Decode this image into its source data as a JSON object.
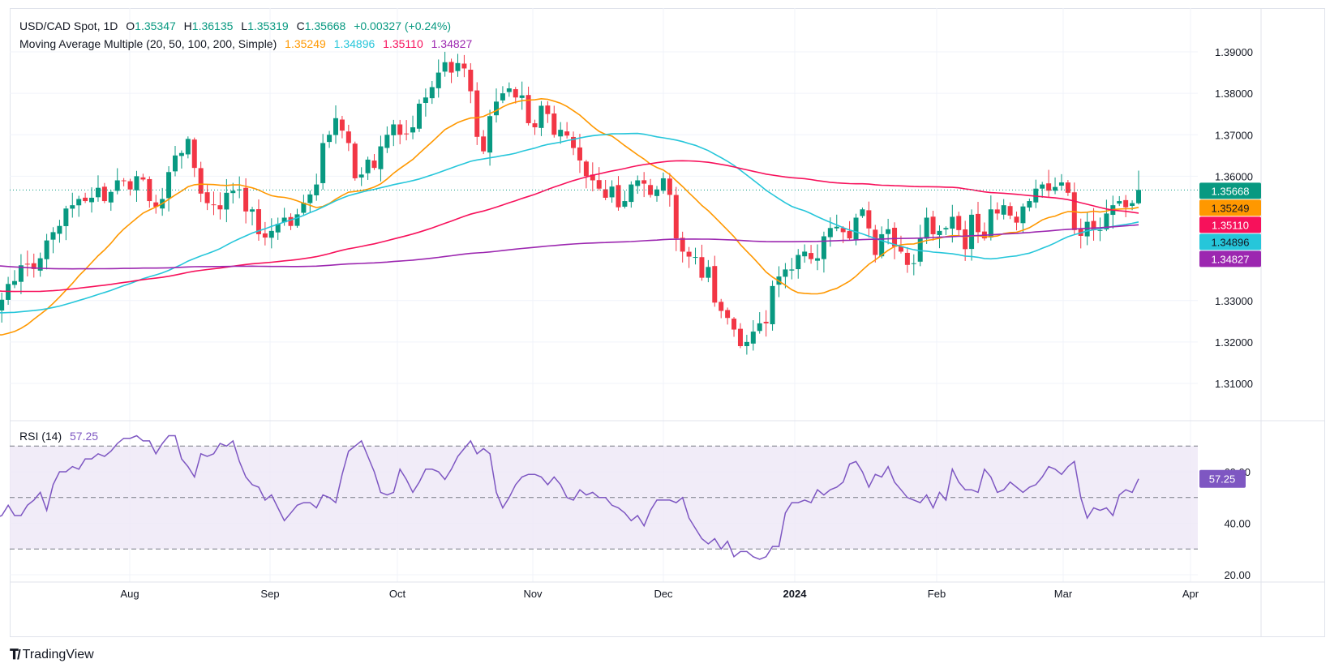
{
  "header": {
    "symbol": "USD/CAD Spot, 1D",
    "open_label": "O",
    "open": "1.35347",
    "high_label": "H",
    "high": "1.36135",
    "low_label": "L",
    "low": "1.35319",
    "close_label": "C",
    "close": "1.35668",
    "change": "+0.00327 (+0.24%)"
  },
  "ma_legend": {
    "label": "Moving Average Multiple (20, 50, 100, 200, Simple)",
    "values": [
      "1.35249",
      "1.34896",
      "1.35110",
      "1.34827"
    ]
  },
  "rsi_legend": {
    "label": "RSI (14)",
    "value": "57.25"
  },
  "footer": {
    "brand": "TradingView",
    "logo_icon": "tradingview-logo-icon"
  },
  "colors": {
    "up": "#089981",
    "down": "#f23645",
    "ma20": "#ff9800",
    "ma50": "#26c6da",
    "ma100": "#f7115b",
    "ma200": "#9c27b0",
    "rsi_line": "#7e57c2",
    "rsi_band": "#ede7f6"
  },
  "chart_data": [
    {
      "type": "candlestick",
      "title": "USD/CAD Spot, 1D",
      "price_axis_ticks": [
        "1.39000",
        "1.38000",
        "1.37000",
        "1.36000",
        "1.33000",
        "1.32000",
        "1.31000"
      ],
      "price_axis_range": [
        1.3005,
        1.396
      ],
      "time_axis_ticks": [
        "Aug",
        "Sep",
        "Oct",
        "Nov",
        "Dec",
        "2024",
        "Feb",
        "Mar",
        "Apr"
      ],
      "price_labels": [
        {
          "name": "last",
          "value": "1.35668",
          "color": "#089981"
        },
        {
          "name": "ma20",
          "value": "1.35249",
          "color": "#ff9800"
        },
        {
          "name": "ma100",
          "value": "1.35110",
          "color": "#f7115b"
        },
        {
          "name": "ma50",
          "value": "1.34896",
          "color": "#26c6da"
        },
        {
          "name": "ma200",
          "value": "1.34827",
          "color": "#9c27b0"
        }
      ],
      "last_price": 1.35668,
      "closes": [
        1.3275,
        1.3308,
        1.3258,
        1.3262,
        1.3235,
        1.3195,
        1.3128,
        1.3165,
        1.3202,
        1.3178,
        1.3172,
        1.319,
        1.3205,
        1.3178,
        1.3232,
        1.3218,
        1.324,
        1.326,
        1.324,
        1.3215,
        1.3276,
        1.3302,
        1.334,
        1.3347,
        1.3385,
        1.3388,
        1.3376,
        1.3402,
        1.3445,
        1.3465,
        1.348,
        1.3522,
        1.353,
        1.3545,
        1.354,
        1.3548,
        1.3572,
        1.354,
        1.3562,
        1.359,
        1.3588,
        1.3568,
        1.36,
        1.3592,
        1.354,
        1.3526,
        1.3545,
        1.361,
        1.365,
        1.3656,
        1.369,
        1.362,
        1.3558,
        1.3535,
        1.353,
        1.352,
        1.356,
        1.3565,
        1.3568,
        1.3515,
        1.352,
        1.346,
        1.3452,
        1.3468,
        1.3485,
        1.35,
        1.348,
        1.3508,
        1.3536,
        1.3556,
        1.358,
        1.368,
        1.37,
        1.374,
        1.371,
        1.368,
        1.3595,
        1.3604,
        1.364,
        1.362,
        1.3672,
        1.37,
        1.3725,
        1.37,
        1.3702,
        1.3718,
        1.3775,
        1.379,
        1.3815,
        1.385,
        1.3875,
        1.385,
        1.3873,
        1.386,
        1.3805,
        1.3695,
        1.366,
        1.3745,
        1.378,
        1.38,
        1.3812,
        1.379,
        1.3795,
        1.3728,
        1.3718,
        1.377,
        1.375,
        1.37,
        1.3712,
        1.3698,
        1.3668,
        1.3638,
        1.36,
        1.359,
        1.357,
        1.3548,
        1.3575,
        1.3525,
        1.354,
        1.358,
        1.359,
        1.3582,
        1.3555,
        1.3568,
        1.3595,
        1.3555,
        1.345,
        1.3418,
        1.3406,
        1.3405,
        1.3355,
        1.3381,
        1.3295,
        1.3275,
        1.3258,
        1.323,
        1.319,
        1.32,
        1.3225,
        1.3245,
        1.3245,
        1.3335,
        1.3358,
        1.3375,
        1.3375,
        1.341,
        1.3418,
        1.34,
        1.3402,
        1.3455,
        1.3475,
        1.3478,
        1.3465,
        1.345,
        1.35,
        1.352,
        1.3474,
        1.341,
        1.346,
        1.3472,
        1.343,
        1.3418,
        1.3386,
        1.339,
        1.3452,
        1.35,
        1.346,
        1.3468,
        1.3475,
        1.3502,
        1.347,
        1.3424,
        1.3507,
        1.3465,
        1.345,
        1.352,
        1.351,
        1.353,
        1.3505,
        1.3488,
        1.3527,
        1.354,
        1.357,
        1.358,
        1.3565,
        1.3574,
        1.3585,
        1.356,
        1.347,
        1.3456,
        1.349,
        1.347,
        1.347,
        1.351,
        1.353,
        1.354,
        1.3525,
        1.3535,
        1.3567
      ],
      "moving_averages": [
        {
          "name": "MA 20",
          "period": 20,
          "color": "#ff9800",
          "last": 1.35249
        },
        {
          "name": "MA 50",
          "period": 50,
          "color": "#26c6da",
          "last": 1.34896
        },
        {
          "name": "MA 100",
          "period": 100,
          "color": "#f7115b",
          "last": 1.3511
        },
        {
          "name": "MA 200",
          "period": 200,
          "color": "#9c27b0",
          "last": 1.34827
        }
      ]
    },
    {
      "type": "line",
      "title": "RSI (14)",
      "last_value": 57.25,
      "y_ticks": [
        "60.00",
        "40.00",
        "20.00"
      ],
      "ylim": [
        17.5,
        82
      ],
      "bands": {
        "upper": 70,
        "middle": 50,
        "lower": 30
      },
      "values": [
        44,
        57,
        47,
        48,
        43,
        39,
        35,
        46,
        44,
        42,
        42,
        43,
        47,
        43,
        43,
        47,
        49,
        52,
        45,
        55,
        60,
        60,
        62,
        61,
        65,
        65,
        67,
        66,
        68,
        71,
        73,
        73,
        74,
        72,
        72,
        67,
        71,
        74,
        74,
        65,
        62,
        58,
        67,
        66,
        67,
        71,
        70,
        72,
        64,
        58,
        55,
        54,
        49,
        51,
        46,
        41,
        44,
        47,
        48,
        48,
        46,
        51,
        50,
        48,
        59,
        68,
        70,
        72,
        66,
        60,
        52,
        51,
        52,
        61,
        57,
        52,
        56,
        61,
        61,
        60,
        57,
        61,
        66,
        69,
        72,
        67,
        69,
        67,
        52,
        46,
        50,
        55,
        58,
        59,
        59,
        58,
        55,
        58,
        55,
        50,
        49,
        53,
        51,
        52,
        50,
        50,
        47,
        46,
        44,
        41,
        43,
        39,
        45,
        49,
        49,
        49,
        48,
        50,
        42,
        38,
        34,
        32,
        34,
        30,
        33,
        27,
        29,
        29,
        27,
        26,
        27,
        31,
        31,
        44,
        48,
        48,
        49,
        48,
        53,
        51,
        53,
        54,
        56,
        63,
        64,
        60,
        54,
        59,
        58,
        62,
        56,
        53,
        50,
        49,
        48,
        51,
        46,
        52,
        49,
        61,
        56,
        53,
        53,
        52,
        61,
        58,
        52,
        53,
        56,
        54,
        52,
        54,
        55,
        58,
        62,
        61,
        59,
        62,
        64,
        50,
        42,
        46,
        45,
        46,
        43,
        51,
        53,
        52,
        57.25
      ]
    }
  ]
}
